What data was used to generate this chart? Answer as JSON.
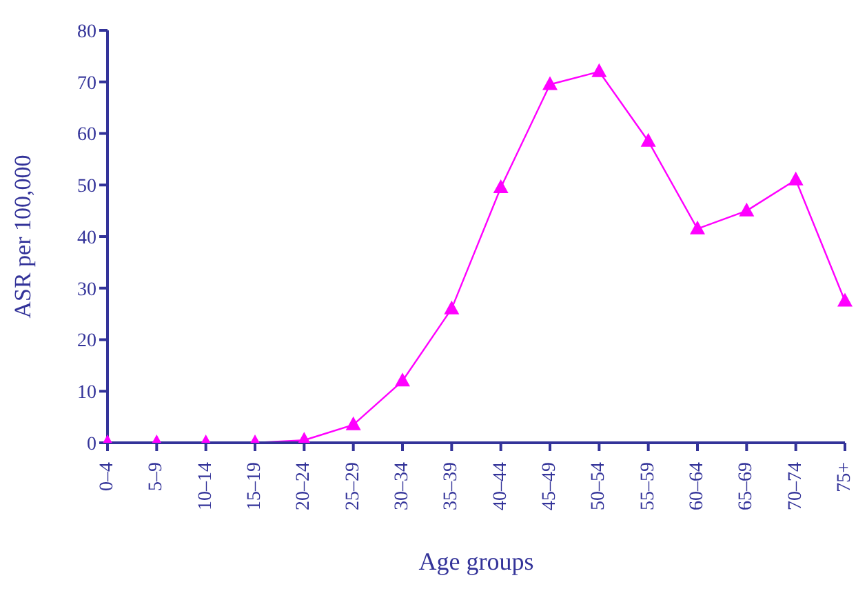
{
  "chart_data": {
    "type": "line",
    "xlabel": "Age groups",
    "ylabel": "ASR per 100,000",
    "categories": [
      "0–4",
      "5–9",
      "10–14",
      "15–19",
      "20–24",
      "25–29",
      "30–34",
      "35–39",
      "40–44",
      "45–49",
      "50–54",
      "55–59",
      "60–64",
      "65–69",
      "70–74",
      "75+"
    ],
    "series": [
      {
        "color": "#ff00ff",
        "values": [
          0,
          0,
          0,
          0,
          0.5,
          3.5,
          12,
          26,
          49.5,
          69.5,
          72,
          58.5,
          41.5,
          45,
          51,
          27.5
        ]
      }
    ],
    "ylim": [
      0,
      80
    ],
    "yticks": [
      0,
      10,
      20,
      30,
      40,
      50,
      60,
      70,
      80
    ],
    "grid": false,
    "legend": false,
    "marker": "triangle",
    "line_style": "solid"
  }
}
